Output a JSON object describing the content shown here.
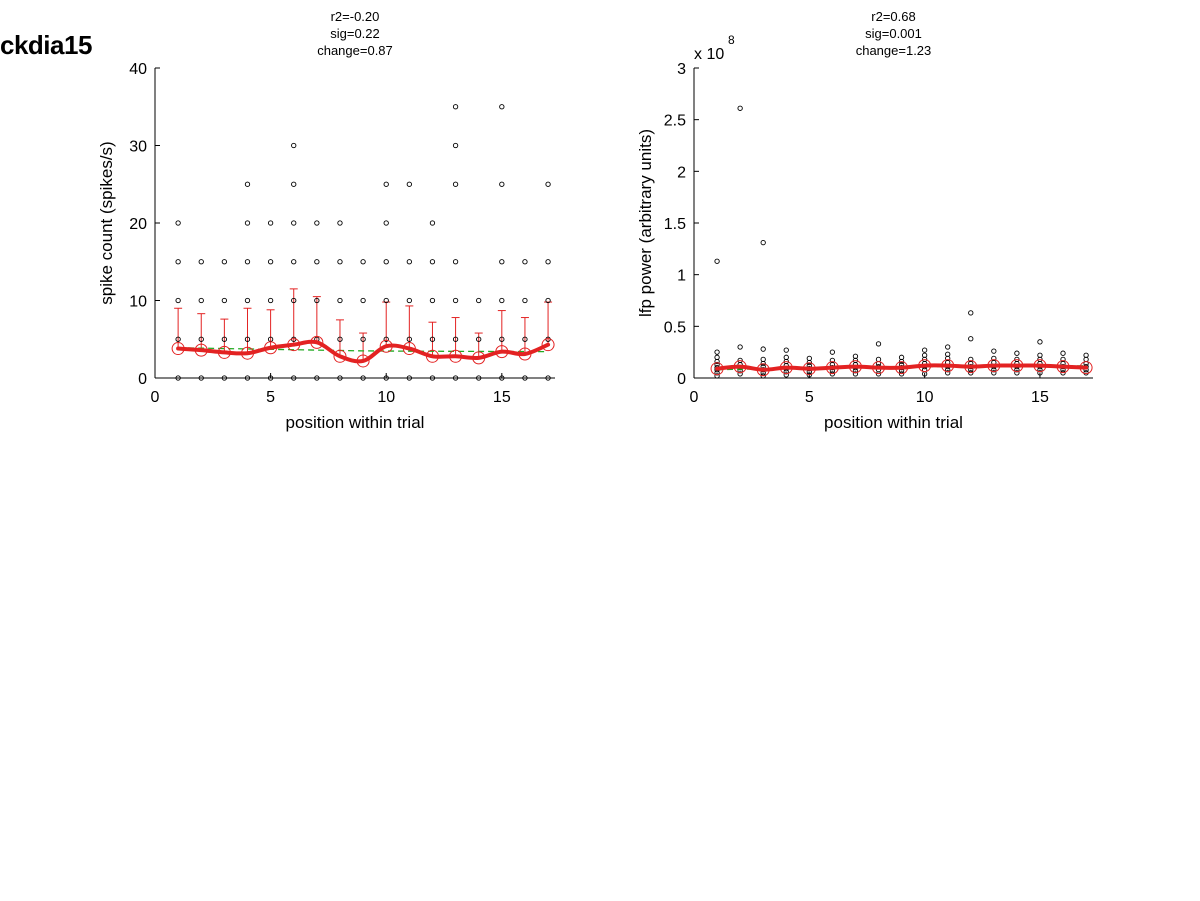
{
  "page": {
    "title": "ckdia15"
  },
  "chart_data": [
    {
      "type": "scatter",
      "stats": [
        "r2=-0.20",
        "sig=0.22",
        "change=0.87"
      ],
      "xlabel": "position within trial",
      "ylabel": "spike count (spikes/s)",
      "xlim": [
        0,
        17.3
      ],
      "ylim": [
        0,
        40
      ],
      "xticks": [
        0,
        5,
        10,
        15
      ],
      "yticks": [
        0,
        10,
        20,
        30,
        40
      ],
      "ytick_labels": [
        "0",
        "10",
        "20",
        "30",
        "40"
      ],
      "exponent_label": "",
      "grid": false,
      "points": [
        [
          1,
          0
        ],
        [
          1,
          5
        ],
        [
          1,
          10
        ],
        [
          1,
          15
        ],
        [
          1,
          20
        ],
        [
          2,
          0
        ],
        [
          2,
          5
        ],
        [
          2,
          10
        ],
        [
          2,
          15
        ],
        [
          3,
          0
        ],
        [
          3,
          5
        ],
        [
          3,
          10
        ],
        [
          3,
          15
        ],
        [
          4,
          0
        ],
        [
          4,
          5
        ],
        [
          4,
          10
        ],
        [
          4,
          15
        ],
        [
          4,
          20
        ],
        [
          4,
          25
        ],
        [
          5,
          0
        ],
        [
          5,
          5
        ],
        [
          5,
          10
        ],
        [
          5,
          15
        ],
        [
          5,
          20
        ],
        [
          6,
          0
        ],
        [
          6,
          5
        ],
        [
          6,
          10
        ],
        [
          6,
          15
        ],
        [
          6,
          20
        ],
        [
          6,
          25
        ],
        [
          6,
          30
        ],
        [
          7,
          0
        ],
        [
          7,
          5
        ],
        [
          7,
          10
        ],
        [
          7,
          15
        ],
        [
          7,
          20
        ],
        [
          8,
          0
        ],
        [
          8,
          5
        ],
        [
          8,
          10
        ],
        [
          8,
          15
        ],
        [
          8,
          20
        ],
        [
          9,
          0
        ],
        [
          9,
          5
        ],
        [
          9,
          10
        ],
        [
          9,
          15
        ],
        [
          10,
          0
        ],
        [
          10,
          5
        ],
        [
          10,
          10
        ],
        [
          10,
          15
        ],
        [
          10,
          20
        ],
        [
          10,
          25
        ],
        [
          11,
          0
        ],
        [
          11,
          5
        ],
        [
          11,
          10
        ],
        [
          11,
          15
        ],
        [
          11,
          25
        ],
        [
          12,
          0
        ],
        [
          12,
          5
        ],
        [
          12,
          10
        ],
        [
          12,
          15
        ],
        [
          12,
          20
        ],
        [
          13,
          0
        ],
        [
          13,
          5
        ],
        [
          13,
          10
        ],
        [
          13,
          15
        ],
        [
          13,
          25
        ],
        [
          13,
          30
        ],
        [
          13,
          35
        ],
        [
          14,
          0
        ],
        [
          14,
          5
        ],
        [
          14,
          10
        ],
        [
          15,
          0
        ],
        [
          15,
          5
        ],
        [
          15,
          10
        ],
        [
          15,
          15
        ],
        [
          15,
          25
        ],
        [
          15,
          35
        ],
        [
          16,
          0
        ],
        [
          16,
          5
        ],
        [
          16,
          10
        ],
        [
          16,
          15
        ],
        [
          17,
          0
        ],
        [
          17,
          5
        ],
        [
          17,
          10
        ],
        [
          17,
          15
        ],
        [
          17,
          25
        ]
      ],
      "means": [
        3.8,
        3.6,
        3.3,
        3.2,
        3.9,
        4.3,
        4.6,
        2.8,
        2.2,
        4.1,
        3.8,
        2.8,
        2.8,
        2.6,
        3.4,
        3.1,
        4.3
      ],
      "errors_upper": [
        9.0,
        8.3,
        7.6,
        9.0,
        8.8,
        11.5,
        10.5,
        7.5,
        5.8,
        9.8,
        9.3,
        7.2,
        7.8,
        5.8,
        8.7,
        7.8,
        9.8
      ],
      "trend": [
        3.9,
        3.85,
        3.8,
        3.75,
        3.7,
        3.65,
        3.6,
        3.55,
        3.5,
        3.48,
        3.46,
        3.45,
        3.44,
        3.43,
        3.42,
        3.41,
        3.4
      ],
      "colors": {
        "points": "#000000",
        "means": "#e32222",
        "trend": "#22aa22"
      }
    },
    {
      "type": "scatter",
      "stats": [
        "r2=0.68",
        "sig=0.001",
        "change=1.23"
      ],
      "xlabel": "position within trial",
      "ylabel": "lfp power (arbitrary units)",
      "xlim": [
        0,
        17.3
      ],
      "ylim": [
        0,
        3
      ],
      "xticks": [
        0,
        5,
        10,
        15
      ],
      "yticks": [
        0,
        0.5,
        1,
        1.5,
        2,
        2.5,
        3
      ],
      "ytick_labels": [
        "0",
        "0.5",
        "1",
        "1.5",
        "2",
        "2.5",
        "3"
      ],
      "exponent_label": "x 10",
      "exponent_power": "8",
      "grid": false,
      "points": [
        [
          1,
          0.02
        ],
        [
          1,
          0.05
        ],
        [
          1,
          0.08
        ],
        [
          1,
          0.1
        ],
        [
          1,
          0.13
        ],
        [
          1,
          0.16
        ],
        [
          1,
          0.2
        ],
        [
          1,
          0.25
        ],
        [
          1,
          1.13
        ],
        [
          2,
          0.04
        ],
        [
          2,
          0.07
        ],
        [
          2,
          0.1
        ],
        [
          2,
          0.13
        ],
        [
          2,
          0.17
        ],
        [
          2,
          0.3
        ],
        [
          2,
          2.61
        ],
        [
          3,
          0.02
        ],
        [
          3,
          0.05
        ],
        [
          3,
          0.08
        ],
        [
          3,
          0.11
        ],
        [
          3,
          0.14
        ],
        [
          3,
          0.18
        ],
        [
          3,
          0.28
        ],
        [
          3,
          1.31
        ],
        [
          4,
          0.03
        ],
        [
          4,
          0.06
        ],
        [
          4,
          0.09
        ],
        [
          4,
          0.12
        ],
        [
          4,
          0.16
        ],
        [
          4,
          0.2
        ],
        [
          4,
          0.27
        ],
        [
          5,
          0.03
        ],
        [
          5,
          0.06
        ],
        [
          5,
          0.09
        ],
        [
          5,
          0.12
        ],
        [
          5,
          0.15
        ],
        [
          5,
          0.19
        ],
        [
          6,
          0.04
        ],
        [
          6,
          0.07
        ],
        [
          6,
          0.1
        ],
        [
          6,
          0.13
        ],
        [
          6,
          0.17
        ],
        [
          6,
          0.25
        ],
        [
          7,
          0.04
        ],
        [
          7,
          0.07
        ],
        [
          7,
          0.1
        ],
        [
          7,
          0.13
        ],
        [
          7,
          0.17
        ],
        [
          7,
          0.21
        ],
        [
          8,
          0.04
        ],
        [
          8,
          0.08
        ],
        [
          8,
          0.11
        ],
        [
          8,
          0.14
        ],
        [
          8,
          0.18
        ],
        [
          8,
          0.33
        ],
        [
          9,
          0.04
        ],
        [
          9,
          0.07
        ],
        [
          9,
          0.1
        ],
        [
          9,
          0.13
        ],
        [
          9,
          0.16
        ],
        [
          9,
          0.2
        ],
        [
          10,
          0.04
        ],
        [
          10,
          0.08
        ],
        [
          10,
          0.11
        ],
        [
          10,
          0.14
        ],
        [
          10,
          0.18
        ],
        [
          10,
          0.22
        ],
        [
          10,
          0.27
        ],
        [
          11,
          0.05
        ],
        [
          11,
          0.08
        ],
        [
          11,
          0.11
        ],
        [
          11,
          0.15
        ],
        [
          11,
          0.19
        ],
        [
          11,
          0.23
        ],
        [
          11,
          0.3
        ],
        [
          12,
          0.05
        ],
        [
          12,
          0.08
        ],
        [
          12,
          0.11
        ],
        [
          12,
          0.14
        ],
        [
          12,
          0.18
        ],
        [
          12,
          0.38
        ],
        [
          12,
          0.63
        ],
        [
          13,
          0.05
        ],
        [
          13,
          0.08
        ],
        [
          13,
          0.11
        ],
        [
          13,
          0.15
        ],
        [
          13,
          0.19
        ],
        [
          13,
          0.26
        ],
        [
          14,
          0.05
        ],
        [
          14,
          0.08
        ],
        [
          14,
          0.11
        ],
        [
          14,
          0.14
        ],
        [
          14,
          0.18
        ],
        [
          14,
          0.24
        ],
        [
          15,
          0.05
        ],
        [
          15,
          0.08
        ],
        [
          15,
          0.11
        ],
        [
          15,
          0.14
        ],
        [
          15,
          0.18
        ],
        [
          15,
          0.22
        ],
        [
          15,
          0.35
        ],
        [
          16,
          0.05
        ],
        [
          16,
          0.08
        ],
        [
          16,
          0.11
        ],
        [
          16,
          0.14
        ],
        [
          16,
          0.18
        ],
        [
          16,
          0.24
        ],
        [
          17,
          0.05
        ],
        [
          17,
          0.08
        ],
        [
          17,
          0.11
        ],
        [
          17,
          0.14
        ],
        [
          17,
          0.18
        ],
        [
          17,
          0.22
        ]
      ],
      "means": [
        0.09,
        0.11,
        0.08,
        0.1,
        0.09,
        0.1,
        0.11,
        0.1,
        0.1,
        0.12,
        0.12,
        0.11,
        0.12,
        0.12,
        0.12,
        0.11,
        0.1
      ],
      "errors_upper": [],
      "trend": [
        0.08,
        0.085,
        0.09,
        0.093,
        0.096,
        0.099,
        0.102,
        0.105,
        0.107,
        0.109,
        0.111,
        0.113,
        0.114,
        0.115,
        0.116,
        0.117,
        0.118
      ],
      "colors": {
        "points": "#000000",
        "means": "#e32222",
        "trend": "#22aa22"
      }
    }
  ]
}
